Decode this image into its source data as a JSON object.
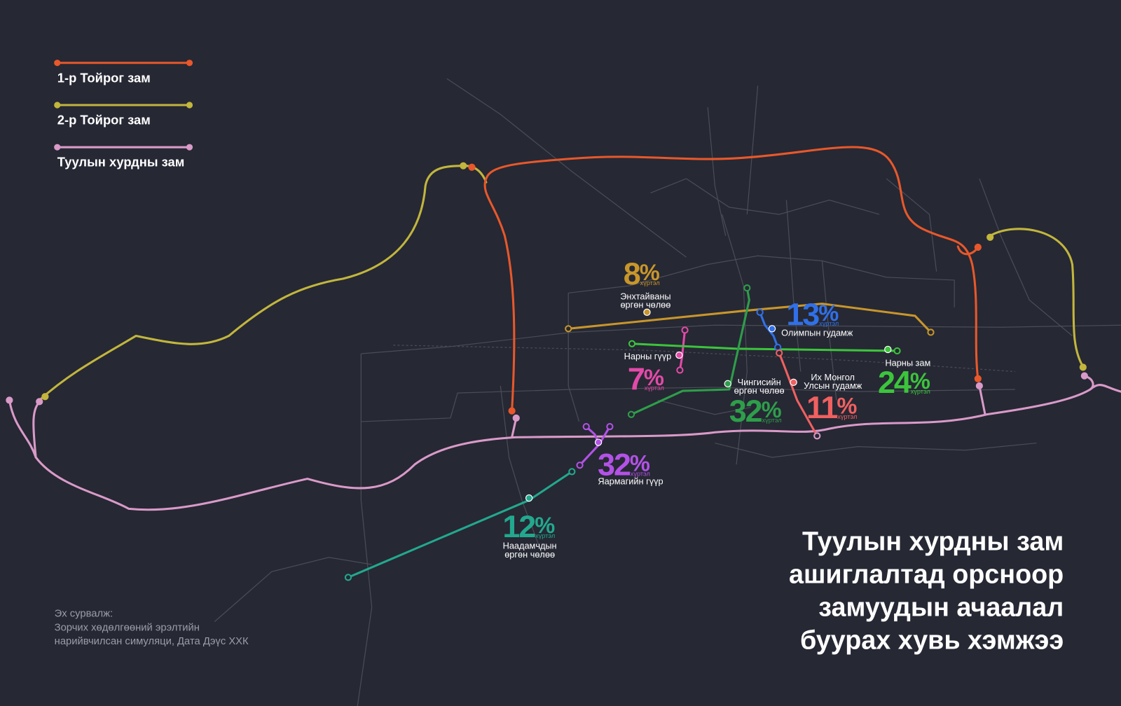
{
  "legend": [
    {
      "label": "1-р Тойрог зам",
      "color": "#e8582a"
    },
    {
      "label": "2-р Тойрог зам",
      "color": "#c2b63c"
    },
    {
      "label": "Туулын хурдны зам",
      "color": "#d99ac8"
    }
  ],
  "percent_sign": "%",
  "upto": "хүртэл",
  "roads": [
    {
      "name": [
        "Энхтайваны",
        "өргөн чөлөө"
      ],
      "reduction": 8,
      "color": "#c8962a"
    },
    {
      "name": [
        "Олимпын гудамж"
      ],
      "reduction": 13,
      "color": "#3070e8"
    },
    {
      "name": [
        "Нарны гүүр"
      ],
      "reduction": 7,
      "color": "#e24aa8"
    },
    {
      "name": [
        "Нарны зам"
      ],
      "reduction": 24,
      "color": "#3cc43c"
    },
    {
      "name": [
        "Чингисийн",
        "өргөн чөлөө"
      ],
      "reduction": 32,
      "color": "#2e9e4a"
    },
    {
      "name": [
        "Их Монгол",
        "Улсын гудамж"
      ],
      "reduction": 11,
      "color": "#f06060"
    },
    {
      "name": [
        "Яармагийн гүүр"
      ],
      "reduction": 32,
      "color": "#b352e6"
    },
    {
      "name": [
        "Наадамчдын",
        "өргөн чөлөө"
      ],
      "reduction": 12,
      "color": "#22a88e"
    }
  ],
  "title": [
    "Туулын хурдны зам",
    "ашиглалтад орсноор",
    "замуудын ачаалал",
    "буурах хувь хэмжээ"
  ],
  "source": [
    "Эх сурвалж:",
    "Зорчих хөдөлгөөний эрэлтийн",
    "нарийвчилсан симуляци, Дата Дэүс ХХК"
  ]
}
